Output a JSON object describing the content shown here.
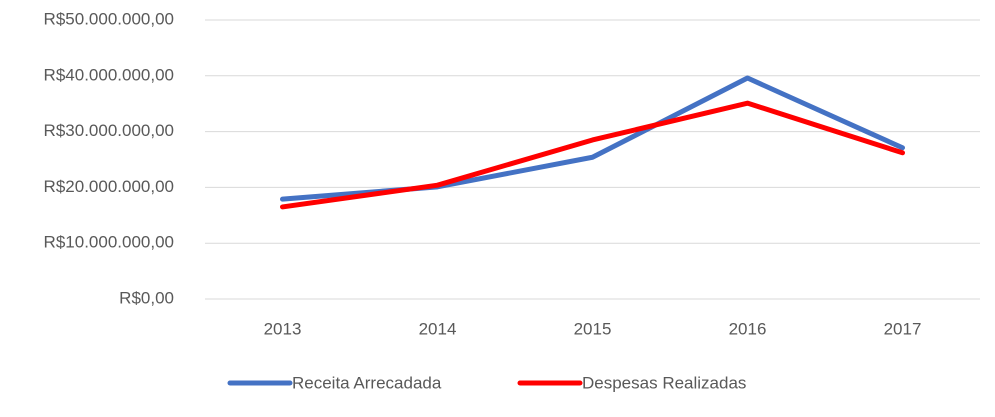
{
  "chart_data": {
    "type": "line",
    "categories": [
      "2013",
      "2014",
      "2015",
      "2016",
      "2017"
    ],
    "series": [
      {
        "name": "Receita Arrecadada",
        "color": "#4472c4",
        "values": [
          17900000,
          20100000,
          25400000,
          39600000,
          27100000
        ]
      },
      {
        "name": "Despesas Realizadas",
        "color": "#ff0000",
        "values": [
          16500000,
          20400000,
          28500000,
          35100000,
          26200000
        ]
      }
    ],
    "ylim": [
      0,
      50000000
    ],
    "yticks": [
      {
        "value": 0,
        "label": "R$0,00"
      },
      {
        "value": 10000000,
        "label": "R$10.000.000,00"
      },
      {
        "value": 20000000,
        "label": "R$20.000.000,00"
      },
      {
        "value": 30000000,
        "label": "R$30.000.000,00"
      },
      {
        "value": 40000000,
        "label": "R$40.000.000,00"
      },
      {
        "value": 50000000,
        "label": "R$50.000.000,00"
      }
    ],
    "grid": true,
    "legend": "bottom"
  }
}
